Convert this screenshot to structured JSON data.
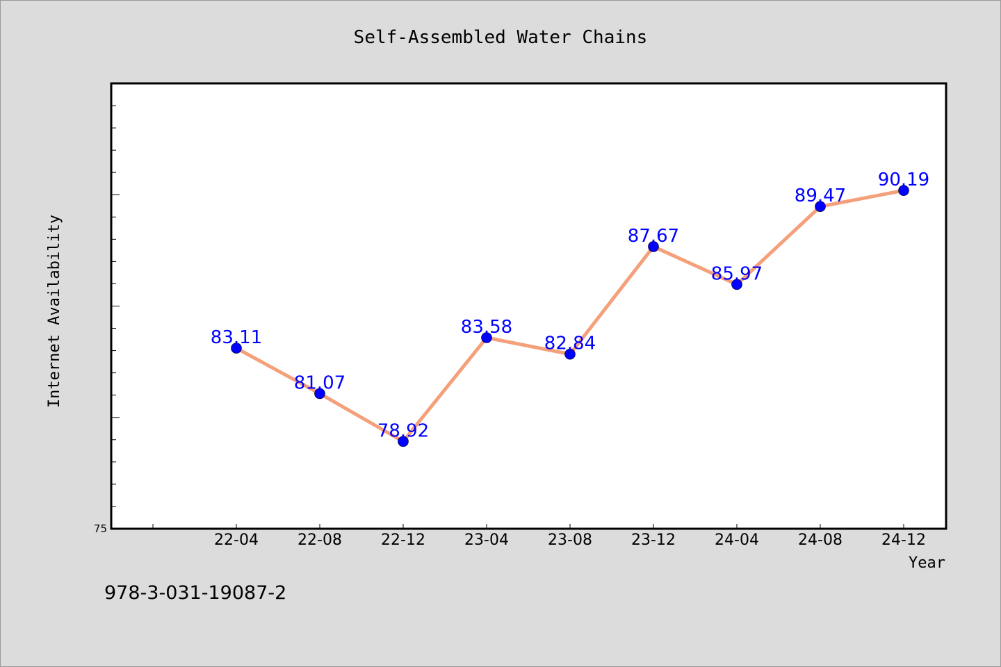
{
  "chart_data": {
    "type": "line",
    "title": "Self-Assembled Water Chains",
    "xlabel": "Year",
    "ylabel": "Internet Availability",
    "categories": [
      "22-04",
      "22-08",
      "22-12",
      "23-04",
      "23-08",
      "23-12",
      "24-04",
      "24-08",
      "24-12"
    ],
    "values": [
      83.11,
      81.07,
      78.92,
      83.58,
      82.84,
      87.67,
      85.97,
      89.47,
      90.19
    ],
    "data_labels": [
      "83.11",
      "81.07",
      "78.92",
      "83.58",
      "82.84",
      "87.67",
      "85.97",
      "89.47",
      "90.19"
    ],
    "ylim": [
      75,
      95
    ],
    "yticks_labeled": [
      "75"
    ],
    "grid": false,
    "legend": "none",
    "colors": {
      "line": "#f4a07a",
      "marker": "#0000ff",
      "data_label": "#0000ff",
      "plot_bg": "#ffffff",
      "page_bg": "#dcdcdc"
    }
  },
  "footer": {
    "isbn": "978-3-031-19087-2"
  }
}
